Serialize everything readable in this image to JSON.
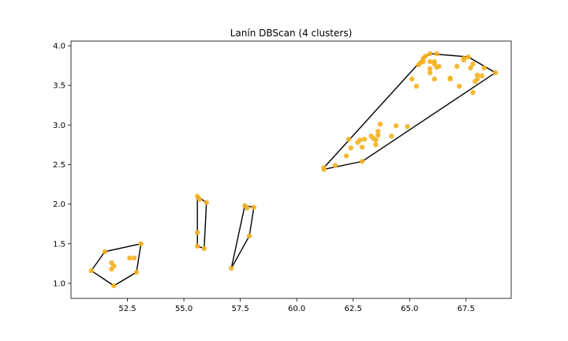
{
  "chart_data": {
    "type": "scatter",
    "title": "Lanín DBScan (4 clusters)",
    "xlabel": "",
    "ylabel": "",
    "xlim": [
      50.0,
      69.5
    ],
    "ylim": [
      0.81,
      4.06
    ],
    "grid": false,
    "x_ticks": [
      52.5,
      55.0,
      57.5,
      60.0,
      62.5,
      65.0,
      67.5
    ],
    "x_tick_labels": [
      "52.5",
      "55.0",
      "57.5",
      "60.0",
      "62.5",
      "65.0",
      "67.5"
    ],
    "y_ticks": [
      1.0,
      1.5,
      2.0,
      2.5,
      3.0,
      3.5,
      4.0
    ],
    "y_tick_labels": [
      "1.0",
      "1.5",
      "2.0",
      "2.5",
      "3.0",
      "3.5",
      "4.0"
    ],
    "point_color": "#f5b120",
    "hull_color": "#000000",
    "points": [
      [
        50.9,
        1.16
      ],
      [
        51.5,
        1.4
      ],
      [
        51.9,
        0.97
      ],
      [
        51.8,
        1.26
      ],
      [
        51.8,
        1.18
      ],
      [
        51.9,
        1.22
      ],
      [
        52.6,
        1.32
      ],
      [
        52.8,
        1.32
      ],
      [
        52.9,
        1.14
      ],
      [
        53.1,
        1.5
      ],
      [
        55.6,
        2.1
      ],
      [
        55.7,
        2.06
      ],
      [
        56.0,
        2.02
      ],
      [
        55.6,
        1.64
      ],
      [
        55.6,
        1.47
      ],
      [
        55.9,
        1.44
      ],
      [
        57.1,
        1.19
      ],
      [
        57.7,
        1.98
      ],
      [
        57.8,
        1.95
      ],
      [
        58.1,
        1.96
      ],
      [
        57.9,
        1.6
      ],
      [
        61.2,
        2.46
      ],
      [
        61.2,
        2.44
      ],
      [
        61.7,
        2.49
      ],
      [
        62.2,
        2.61
      ],
      [
        62.3,
        2.82
      ],
      [
        62.4,
        2.71
      ],
      [
        62.7,
        2.78
      ],
      [
        62.8,
        2.81
      ],
      [
        62.9,
        2.72
      ],
      [
        63.0,
        2.82
      ],
      [
        62.9,
        2.54
      ],
      [
        63.3,
        2.86
      ],
      [
        63.4,
        2.83
      ],
      [
        63.5,
        2.75
      ],
      [
        63.6,
        2.87
      ],
      [
        63.5,
        2.81
      ],
      [
        63.6,
        2.92
      ],
      [
        63.7,
        3.01
      ],
      [
        64.2,
        2.86
      ],
      [
        64.4,
        2.99
      ],
      [
        64.9,
        2.98
      ],
      [
        65.1,
        3.58
      ],
      [
        65.3,
        3.49
      ],
      [
        65.4,
        3.76
      ],
      [
        65.5,
        3.79
      ],
      [
        65.6,
        3.84
      ],
      [
        65.6,
        3.8
      ],
      [
        65.7,
        3.87
      ],
      [
        65.9,
        3.9
      ],
      [
        65.9,
        3.8
      ],
      [
        65.9,
        3.71
      ],
      [
        65.9,
        3.66
      ],
      [
        66.1,
        3.8
      ],
      [
        66.1,
        3.77
      ],
      [
        66.2,
        3.9
      ],
      [
        66.2,
        3.73
      ],
      [
        66.3,
        3.74
      ],
      [
        66.1,
        3.58
      ],
      [
        66.8,
        3.58
      ],
      [
        66.8,
        3.59
      ],
      [
        67.1,
        3.74
      ],
      [
        67.2,
        3.49
      ],
      [
        67.4,
        3.84
      ],
      [
        67.4,
        3.82
      ],
      [
        67.6,
        3.86
      ],
      [
        67.7,
        3.72
      ],
      [
        67.8,
        3.77
      ],
      [
        67.8,
        3.41
      ],
      [
        67.9,
        3.55
      ],
      [
        68.0,
        3.58
      ],
      [
        68.0,
        3.63
      ],
      [
        68.2,
        3.62
      ],
      [
        68.3,
        3.72
      ],
      [
        68.8,
        3.66
      ]
    ],
    "hulls": [
      [
        [
          50.9,
          1.16
        ],
        [
          51.5,
          1.4
        ],
        [
          53.1,
          1.5
        ],
        [
          52.9,
          1.14
        ],
        [
          51.9,
          0.97
        ],
        [
          50.9,
          1.16
        ]
      ],
      [
        [
          55.6,
          2.1
        ],
        [
          56.0,
          2.02
        ],
        [
          55.9,
          1.44
        ],
        [
          55.6,
          1.47
        ],
        [
          55.6,
          2.1
        ]
      ],
      [
        [
          57.1,
          1.19
        ],
        [
          57.7,
          1.98
        ],
        [
          58.1,
          1.96
        ],
        [
          57.9,
          1.6
        ],
        [
          57.1,
          1.19
        ]
      ],
      [
        [
          61.2,
          2.46
        ],
        [
          65.6,
          3.84
        ],
        [
          65.9,
          3.9
        ],
        [
          67.6,
          3.86
        ],
        [
          68.8,
          3.66
        ],
        [
          62.9,
          2.54
        ],
        [
          61.2,
          2.44
        ],
        [
          61.2,
          2.46
        ]
      ]
    ]
  }
}
